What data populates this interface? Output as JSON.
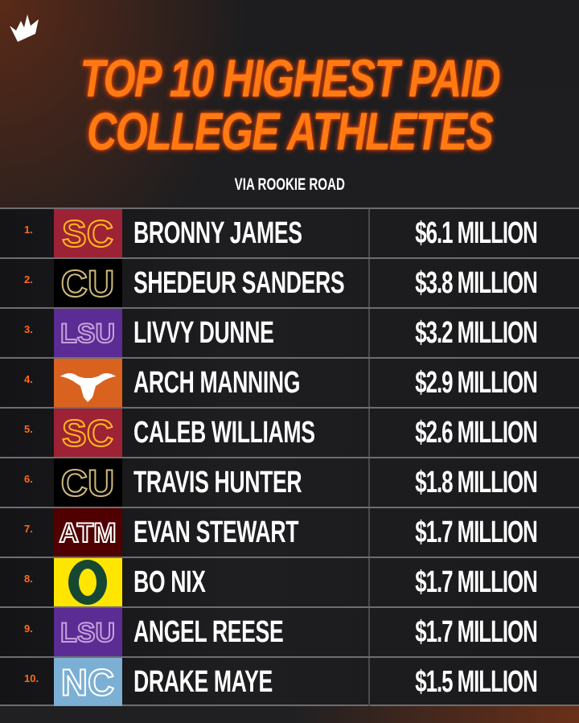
{
  "brand": {
    "logo": "draftkings-crown-icon"
  },
  "header": {
    "title_line1": "TOP 10 HIGHEST PAID",
    "title_line2": "COLLEGE ATHLETES",
    "source": "VIA ROOKIE ROAD"
  },
  "colors": {
    "title": "#ff7a12",
    "rank": "#ff6a1a",
    "text": "#ffffff",
    "background": "#1a1a1c"
  },
  "rows": [
    {
      "rank": "1.",
      "name": "BRONNY JAMES",
      "amount": "$6.1 MILLION",
      "team": "USC",
      "logo_text": "SC",
      "logo_bg": "#9d2235",
      "logo_fg": "#ffb81c"
    },
    {
      "rank": "2.",
      "name": "SHEDEUR SANDERS",
      "amount": "$3.8 MILLION",
      "team": "Colorado",
      "logo_text": "CU",
      "logo_bg": "#000000",
      "logo_fg": "#cfb87c"
    },
    {
      "rank": "3.",
      "name": "LIVVY DUNNE",
      "amount": "$3.2 MILLION",
      "team": "LSU",
      "logo_text": "LSU",
      "logo_bg": "#5b2c93",
      "logo_fg": "#c9a0dc"
    },
    {
      "rank": "4.",
      "name": "ARCH MANNING",
      "amount": "$2.9 MILLION",
      "team": "Texas",
      "logo_text": "",
      "logo_bg": "#d9621f",
      "logo_fg": "#ffffff"
    },
    {
      "rank": "5.",
      "name": "CALEB WILLIAMS",
      "amount": "$2.6 MILLION",
      "team": "USC",
      "logo_text": "SC",
      "logo_bg": "#9d2235",
      "logo_fg": "#ffb81c"
    },
    {
      "rank": "6.",
      "name": "TRAVIS HUNTER",
      "amount": "$1.8 MILLION",
      "team": "Colorado",
      "logo_text": "CU",
      "logo_bg": "#000000",
      "logo_fg": "#cfb87c"
    },
    {
      "rank": "7.",
      "name": "EVAN STEWART",
      "amount": "$1.7 MILLION",
      "team": "Texas A&M",
      "logo_text": "ATM",
      "logo_bg": "#500000",
      "logo_fg": "#ffffff"
    },
    {
      "rank": "8.",
      "name": "BO NIX",
      "amount": "$1.7 MILLION",
      "team": "Oregon",
      "logo_text": "O",
      "logo_bg": "#ffe600",
      "logo_fg": "#154733"
    },
    {
      "rank": "9.",
      "name": "ANGEL REESE",
      "amount": "$1.7 MILLION",
      "team": "LSU",
      "logo_text": "LSU",
      "logo_bg": "#5b2c93",
      "logo_fg": "#c9a0dc"
    },
    {
      "rank": "10.",
      "name": "DRAKE MAYE",
      "amount": "$1.5 MILLION",
      "team": "North Carolina",
      "logo_text": "NC",
      "logo_bg": "#7bafd4",
      "logo_fg": "#ffffff"
    }
  ]
}
